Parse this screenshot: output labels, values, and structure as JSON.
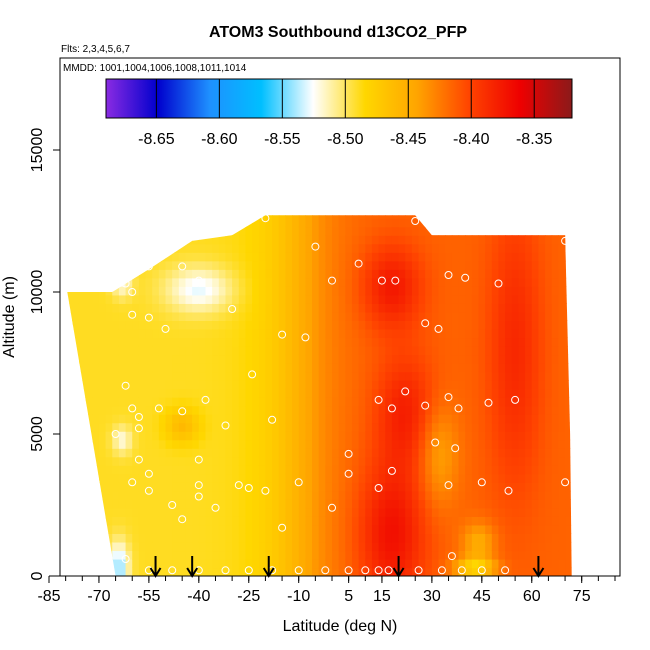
{
  "chart_data": {
    "type": "heatmap",
    "title": "ATOM3 Southbound d13CO2_PFP",
    "subtitle_flights": "Flts: 2,3,4,5,6,7",
    "subtitle_dates": "MMDD: 1001,1004,1006,1008,1011,1014",
    "xlabel": "Latitude (deg N)",
    "ylabel": "Altitude (m)",
    "xlim": [
      -85,
      85
    ],
    "ylim": [
      0,
      17500
    ],
    "x_ticks": [
      -85,
      -70,
      -55,
      -40,
      -25,
      -10,
      5,
      15,
      30,
      45,
      60,
      75
    ],
    "x_tick_labels": [
      "-85",
      "-70",
      "-55",
      "-40",
      "-25",
      "-10",
      "5",
      "15",
      "30",
      "45",
      "60",
      "75"
    ],
    "y_ticks": [
      0,
      5000,
      10000,
      15000
    ],
    "y_tick_labels": [
      "0",
      "5000",
      "10000",
      "15000"
    ],
    "colorbar": {
      "min": -8.69,
      "max": -8.32,
      "ticks": [
        -8.65,
        -8.6,
        -8.55,
        -8.5,
        -8.45,
        -8.4,
        -8.35
      ],
      "tick_labels": [
        "-8.65",
        "-8.60",
        "-8.55",
        "-8.50",
        "-8.45",
        "-8.40",
        "-8.35"
      ],
      "colors": [
        "#8a2be2",
        "#0000cd",
        "#1e90ff",
        "#00bfff",
        "#ffffff",
        "#ffd700",
        "#ffa500",
        "#ff4500",
        "#ee0000",
        "#8b1a1a"
      ]
    },
    "arrows_lat": [
      -53,
      -42,
      -19,
      20,
      62
    ],
    "samples": [
      {
        "lat": -62,
        "alt": 10300
      },
      {
        "lat": -60,
        "alt": 10000
      },
      {
        "lat": -55,
        "alt": 10900
      },
      {
        "lat": -45,
        "alt": 10900
      },
      {
        "lat": -40,
        "alt": 10400
      },
      {
        "lat": -30,
        "alt": 9400
      },
      {
        "lat": -60,
        "alt": 9200
      },
      {
        "lat": -55,
        "alt": 9100
      },
      {
        "lat": -50,
        "alt": 8700
      },
      {
        "lat": -20,
        "alt": 12600
      },
      {
        "lat": -5,
        "alt": 11600
      },
      {
        "lat": 0,
        "alt": 10400
      },
      {
        "lat": 8,
        "alt": 11000
      },
      {
        "lat": 15,
        "alt": 10400
      },
      {
        "lat": 19,
        "alt": 10400
      },
      {
        "lat": 25,
        "alt": 12500
      },
      {
        "lat": 35,
        "alt": 10600
      },
      {
        "lat": 40,
        "alt": 10500
      },
      {
        "lat": 50,
        "alt": 10300
      },
      {
        "lat": 70,
        "alt": 11800
      },
      {
        "lat": -15,
        "alt": 8500
      },
      {
        "lat": -8,
        "alt": 8400
      },
      {
        "lat": 28,
        "alt": 8900
      },
      {
        "lat": 32,
        "alt": 8700
      },
      {
        "lat": -62,
        "alt": 6700
      },
      {
        "lat": -60,
        "alt": 5900
      },
      {
        "lat": -58,
        "alt": 5600
      },
      {
        "lat": -52,
        "alt": 5900
      },
      {
        "lat": -45,
        "alt": 5800
      },
      {
        "lat": -38,
        "alt": 6200
      },
      {
        "lat": -24,
        "alt": 7100
      },
      {
        "lat": -32,
        "alt": 5300
      },
      {
        "lat": -65,
        "alt": 5000
      },
      {
        "lat": -58,
        "alt": 5200
      },
      {
        "lat": -18,
        "alt": 5500
      },
      {
        "lat": 14,
        "alt": 6200
      },
      {
        "lat": 18,
        "alt": 5900
      },
      {
        "lat": 22,
        "alt": 6500
      },
      {
        "lat": 28,
        "alt": 6000
      },
      {
        "lat": 35,
        "alt": 6300
      },
      {
        "lat": 38,
        "alt": 5900
      },
      {
        "lat": 47,
        "alt": 6100
      },
      {
        "lat": 55,
        "alt": 6200
      },
      {
        "lat": 31,
        "alt": 4700
      },
      {
        "lat": 37,
        "alt": 4500
      },
      {
        "lat": 5,
        "alt": 4300
      },
      {
        "lat": -58,
        "alt": 4100
      },
      {
        "lat": -40,
        "alt": 4100
      },
      {
        "lat": -55,
        "alt": 3600
      },
      {
        "lat": 5,
        "alt": 3600
      },
      {
        "lat": 18,
        "alt": 3700
      },
      {
        "lat": -60,
        "alt": 3300
      },
      {
        "lat": -55,
        "alt": 3000
      },
      {
        "lat": -40,
        "alt": 3200
      },
      {
        "lat": -40,
        "alt": 2800
      },
      {
        "lat": -25,
        "alt": 3100
      },
      {
        "lat": -28,
        "alt": 3200
      },
      {
        "lat": -10,
        "alt": 3300
      },
      {
        "lat": 14,
        "alt": 3100
      },
      {
        "lat": 35,
        "alt": 3200
      },
      {
        "lat": 45,
        "alt": 3300
      },
      {
        "lat": 53,
        "alt": 3000
      },
      {
        "lat": 70,
        "alt": 3300
      },
      {
        "lat": -48,
        "alt": 2500
      },
      {
        "lat": -35,
        "alt": 2400
      },
      {
        "lat": -45,
        "alt": 2000
      },
      {
        "lat": 0,
        "alt": 2400
      },
      {
        "lat": -20,
        "alt": 3000
      },
      {
        "lat": -15,
        "alt": 1700
      },
      {
        "lat": -62,
        "alt": 600
      },
      {
        "lat": -55,
        "alt": 200
      },
      {
        "lat": -48,
        "alt": 200
      },
      {
        "lat": -40,
        "alt": 200
      },
      {
        "lat": -32,
        "alt": 200
      },
      {
        "lat": -25,
        "alt": 200
      },
      {
        "lat": -18,
        "alt": 200
      },
      {
        "lat": -10,
        "alt": 200
      },
      {
        "lat": -2,
        "alt": 200
      },
      {
        "lat": 5,
        "alt": 200
      },
      {
        "lat": 10,
        "alt": 200
      },
      {
        "lat": 14,
        "alt": 200
      },
      {
        "lat": 17,
        "alt": 200
      },
      {
        "lat": 26,
        "alt": 200
      },
      {
        "lat": 33,
        "alt": 200
      },
      {
        "lat": 36,
        "alt": 700
      },
      {
        "lat": 39,
        "alt": 200
      },
      {
        "lat": 45,
        "alt": 200
      },
      {
        "lat": 52,
        "alt": 200
      }
    ]
  }
}
